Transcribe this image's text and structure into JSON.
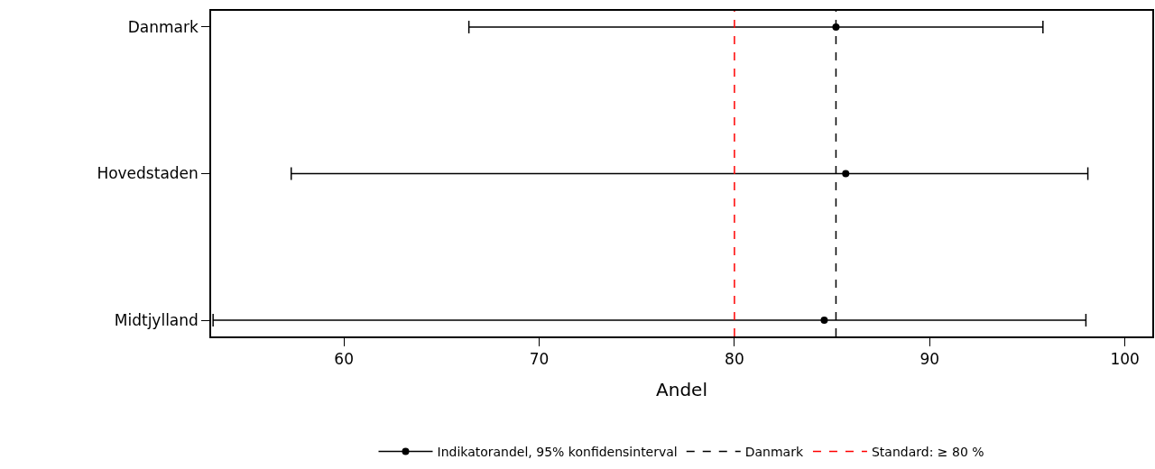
{
  "chart_data": {
    "type": "scatter",
    "orientation": "horizontal",
    "xlabel": "Andel",
    "categories": [
      "Danmark",
      "Hovedstaden",
      "Midtjylland"
    ],
    "series": [
      {
        "name": "Indikatorandel, 95% konfidensinterval",
        "color": "#000000",
        "values": [
          85.2,
          85.7,
          84.6
        ],
        "errors": [
          [
            66.4,
            95.8
          ],
          [
            57.3,
            98.1
          ],
          [
            53.3,
            98.0
          ]
        ]
      }
    ],
    "xlim": [
      53.2,
      101.4
    ],
    "xticks": [
      60,
      70,
      80,
      90,
      100
    ],
    "ref_lines": [
      {
        "axis": "x",
        "value": 85.2,
        "label": "Danmark",
        "color": "#000000",
        "line_style": "dashed"
      },
      {
        "axis": "x",
        "value": 80,
        "label": "Standard: ≥ 80 %",
        "color": "#ff0000",
        "line_style": "dashed"
      }
    ],
    "marker": "circle",
    "line_style": "solid",
    "grid": false,
    "legend": "bottom"
  }
}
